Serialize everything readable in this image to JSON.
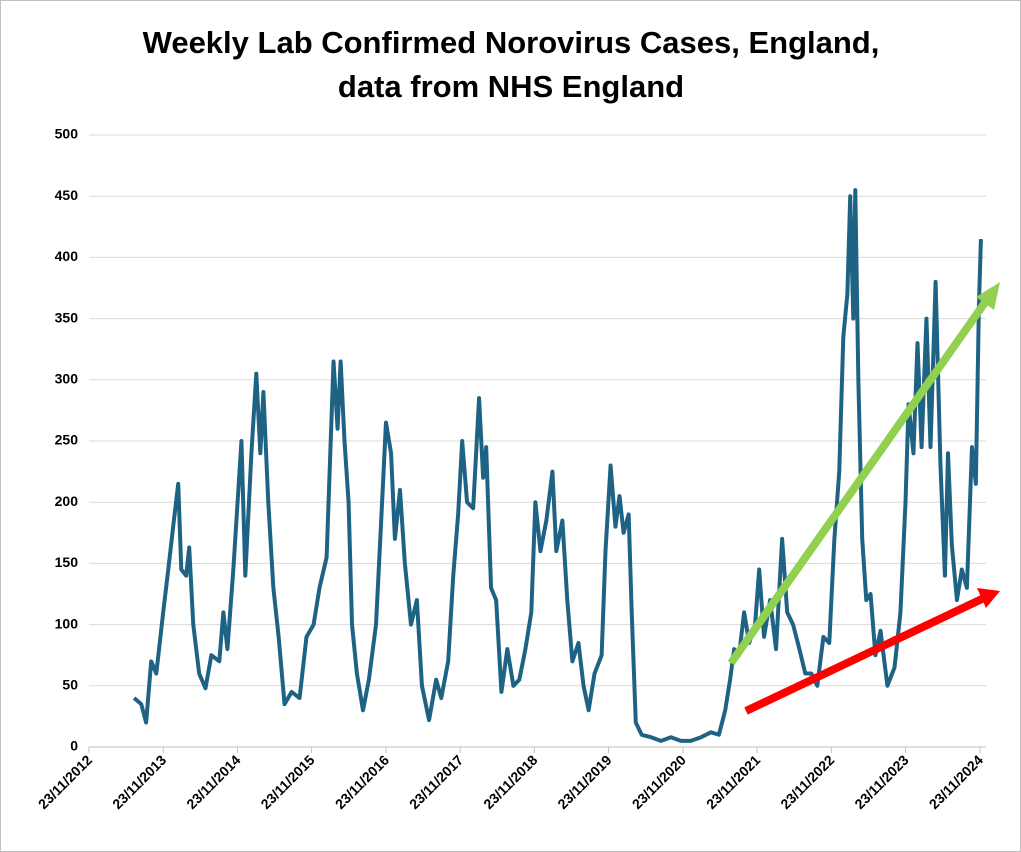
{
  "chart_data": {
    "type": "line",
    "title": [
      "Weekly Lab Confirmed Norovirus Cases, England,",
      "data from NHS England"
    ],
    "color": "#1f6384",
    "grid": true,
    "xlim": [
      "23/11/2012",
      "23/12/2024"
    ],
    "xticks": [
      "23/11/2012",
      "23/11/2013",
      "23/11/2014",
      "23/11/2015",
      "23/11/2016",
      "23/11/2017",
      "23/11/2018",
      "23/11/2019",
      "23/11/2020",
      "23/11/2021",
      "23/11/2022",
      "23/11/2023",
      "23/11/2024"
    ],
    "ylim": [
      0,
      500
    ],
    "yticks": [
      0,
      50,
      100,
      150,
      200,
      250,
      300,
      350,
      400,
      450,
      500
    ],
    "x": [
      "03/07/2013",
      "07/08/2013",
      "31/08/2013",
      "25/09/2013",
      "20/10/2013",
      "23/11/2013",
      "18/12/2013",
      "11/01/2014",
      "05/02/2014",
      "20/02/2014",
      "16/03/2014",
      "31/03/2014",
      "20/04/2014",
      "19/05/2014",
      "19/06/2014",
      "18/07/2014",
      "26/08/2014",
      "15/09/2014",
      "05/10/2014",
      "03/11/2014",
      "13/12/2014",
      "01/01/2015",
      "31/01/2015",
      "24/02/2015",
      "16/03/2015",
      "31/03/2015",
      "24/04/2015",
      "19/05/2015",
      "14/06/2015",
      "13/07/2015",
      "17/08/2015",
      "25/09/2015",
      "29/10/2015",
      "03/12/2015",
      "01/01/2016",
      "05/02/2016",
      "10/03/2016",
      "30/03/2016",
      "14/04/2016",
      "03/05/2016",
      "23/05/2016",
      "09/06/2016",
      "03/07/2016",
      "02/08/2016",
      "31/08/2016",
      "05/10/2016",
      "29/10/2016",
      "23/11/2016",
      "18/12/2016",
      "06/01/2017",
      "31/01/2017",
      "24/02/2017",
      "26/03/2017",
      "24/04/2017",
      "19/05/2017",
      "23/06/2017",
      "28/07/2017",
      "22/08/2017",
      "25/09/2017",
      "20/10/2017",
      "13/11/2017",
      "03/12/2017",
      "27/12/2017",
      "26/01/2018",
      "24/02/2018",
      "16/03/2018",
      "31/03/2018",
      "24/04/2018",
      "19/05/2018",
      "14/06/2018",
      "13/07/2018",
      "12/08/2018",
      "10/09/2018",
      "10/10/2018",
      "08/11/2018",
      "28/11/2018",
      "23/12/2018",
      "21/01/2019",
      "20/02/2019",
      "11/03/2019",
      "10/04/2019",
      "04/05/2019",
      "29/05/2019",
      "28/06/2019",
      "23/07/2019",
      "17/08/2019",
      "15/09/2019",
      "20/10/2019",
      "08/11/2019",
      "03/12/2019",
      "27/12/2019",
      "16/01/2020",
      "05/02/2020",
      "01/03/2020",
      "16/03/2020",
      "05/04/2020",
      "04/05/2020",
      "19/06/2020",
      "07/08/2020",
      "25/09/2020",
      "13/11/2020",
      "01/01/2021",
      "20/02/2021",
      "10/04/2021",
      "19/05/2021",
      "19/06/2021",
      "13/07/2021",
      "02/08/2021",
      "26/08/2021",
      "20/09/2021",
      "15/10/2021",
      "13/11/2021",
      "03/12/2021",
      "27/12/2021",
      "26/01/2022",
      "24/02/2022",
      "26/03/2022",
      "20/04/2022",
      "19/05/2022",
      "19/06/2022",
      "18/07/2022",
      "17/08/2022",
      "15/09/2022",
      "15/10/2022",
      "13/11/2022",
      "08/12/2022",
      "01/01/2023",
      "21/01/2023",
      "10/02/2023",
      "24/02/2023",
      "11/03/2023",
      "21/03/2023",
      "05/04/2023",
      "24/04/2023",
      "14/05/2023",
      "04/06/2023",
      "28/06/2023",
      "23/07/2023",
      "26/08/2023",
      "30/09/2023",
      "29/10/2023",
      "23/11/2023",
      "08/12/2023",
      "01/01/2024",
      "21/01/2024",
      "10/02/2024",
      "05/03/2024",
      "25/03/2024",
      "19/04/2024",
      "13/05/2024",
      "04/06/2024",
      "19/06/2024",
      "08/07/2024",
      "02/08/2024",
      "26/08/2024",
      "20/09/2024",
      "15/10/2024",
      "03/11/2024",
      "18/11/2024",
      "28/11/2024"
    ],
    "values": [
      40,
      35,
      20,
      70,
      60,
      110,
      145,
      180,
      215,
      145,
      140,
      163,
      100,
      60,
      48,
      75,
      70,
      110,
      80,
      145,
      250,
      140,
      240,
      305,
      240,
      290,
      200,
      130,
      90,
      35,
      45,
      40,
      90,
      100,
      130,
      155,
      315,
      260,
      315,
      250,
      200,
      100,
      60,
      30,
      55,
      100,
      180,
      265,
      240,
      170,
      210,
      150,
      100,
      120,
      50,
      22,
      55,
      40,
      70,
      140,
      190,
      250,
      200,
      195,
      285,
      220,
      245,
      130,
      120,
      45,
      80,
      50,
      55,
      80,
      110,
      200,
      160,
      185,
      225,
      160,
      185,
      120,
      70,
      85,
      50,
      30,
      60,
      75,
      160,
      230,
      180,
      205,
      175,
      190,
      110,
      20,
      10,
      8,
      5,
      8,
      5,
      5,
      8,
      12,
      10,
      30,
      55,
      80,
      75,
      110,
      85,
      100,
      145,
      90,
      120,
      80,
      170,
      110,
      100,
      80,
      60,
      60,
      50,
      90,
      85,
      170,
      225,
      335,
      370,
      450,
      350,
      455,
      300,
      170,
      120,
      125,
      75,
      95,
      50,
      65,
      110,
      200,
      280,
      240,
      330,
      245,
      350,
      245,
      380,
      230,
      140,
      240,
      165,
      120,
      145,
      130,
      245,
      215,
      360,
      415
    ]
  }
}
